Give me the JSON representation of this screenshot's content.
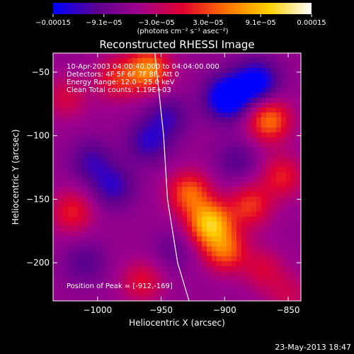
{
  "chart_data": {
    "type": "heatmap",
    "title": "Reconstructed RHESSI Image",
    "xlabel": "Heliocentric X (arcsec)",
    "ylabel": "Heliocentric Y (arcsec)",
    "xlim": [
      -1035,
      -840
    ],
    "ylim": [
      -230,
      -35
    ],
    "x_ticks": [
      -1000,
      -950,
      -900,
      -850
    ],
    "x_tick_labels": [
      "−1000",
      "−950",
      "−900",
      "−850"
    ],
    "y_ticks": [
      -50,
      -100,
      -150,
      -200
    ],
    "y_tick_labels": [
      "−50",
      "−100",
      "−150",
      "−200"
    ],
    "colorbar": {
      "range": [
        -0.00015,
        0.00015
      ],
      "ticks": [
        -0.00015,
        -9.1e-05,
        -3e-05,
        3e-05,
        9.1e-05,
        0.00015
      ],
      "tick_labels": [
        "−0.00015",
        "−9.1e−05",
        "−3.0e−05",
        "3.0e−05",
        "9.1e−05",
        "0.00015"
      ],
      "unit_label": "(photons cm⁻² s⁻¹ asec⁻²)",
      "colors": [
        "#0000ff",
        "#5a0090",
        "#a0008c",
        "#e00030",
        "#ff7000",
        "#ffd000",
        "#ffffff"
      ]
    },
    "annotations": [
      "10-Apr-2003 04:00:40.000 to 04:04:00.000",
      "Detectors: 4F 5F 6F 7F 8F, Att 0",
      "Energy Range: 12.0 - 25.0 keV",
      "Clean    Total counts: 1.19E+03"
    ],
    "peak_label": "Position of Peak = [-912,-169]",
    "peak": [
      -912,
      -169
    ],
    "limb_line": [
      [
        -955,
        -35
      ],
      [
        -948,
        -100
      ],
      [
        -945,
        -150
      ],
      [
        -937,
        -200
      ],
      [
        -928,
        -230
      ]
    ],
    "sources": [
      {
        "x": -912,
        "y": -169,
        "value": 0.00015
      },
      {
        "x": -928,
        "y": -145,
        "value": 0.0001
      },
      {
        "x": -900,
        "y": -190,
        "value": 0.0001
      },
      {
        "x": -880,
        "y": -155,
        "value": 8e-05
      },
      {
        "x": -960,
        "y": -48,
        "value": 0.00012
      },
      {
        "x": -985,
        "y": -55,
        "value": 7e-05
      },
      {
        "x": -865,
        "y": -88,
        "value": 0.00011
      },
      {
        "x": -855,
        "y": -132,
        "value": 7e-05
      },
      {
        "x": -1025,
        "y": -70,
        "value": 5e-05
      },
      {
        "x": -1020,
        "y": -160,
        "value": 7e-05
      },
      {
        "x": -965,
        "y": -215,
        "value": 6e-05
      },
      {
        "x": -870,
        "y": -205,
        "value": 5e-05
      },
      {
        "x": -850,
        "y": -225,
        "value": 4e-05
      },
      {
        "x": -898,
        "y": -70,
        "value": -0.00012
      },
      {
        "x": -875,
        "y": -58,
        "value": -0.0001
      },
      {
        "x": -988,
        "y": -140,
        "value": -6e-05
      },
      {
        "x": -1005,
        "y": -120,
        "value": -5e-05
      },
      {
        "x": -960,
        "y": -105,
        "value": -6e-05
      },
      {
        "x": -945,
        "y": -85,
        "value": -5e-05
      },
      {
        "x": -1010,
        "y": -200,
        "value": -4e-05
      },
      {
        "x": -890,
        "y": -120,
        "value": -4e-05
      },
      {
        "x": -940,
        "y": -190,
        "value": -3e-05
      }
    ]
  },
  "footer": {
    "timestamp": "23-May-2013 18:47"
  }
}
